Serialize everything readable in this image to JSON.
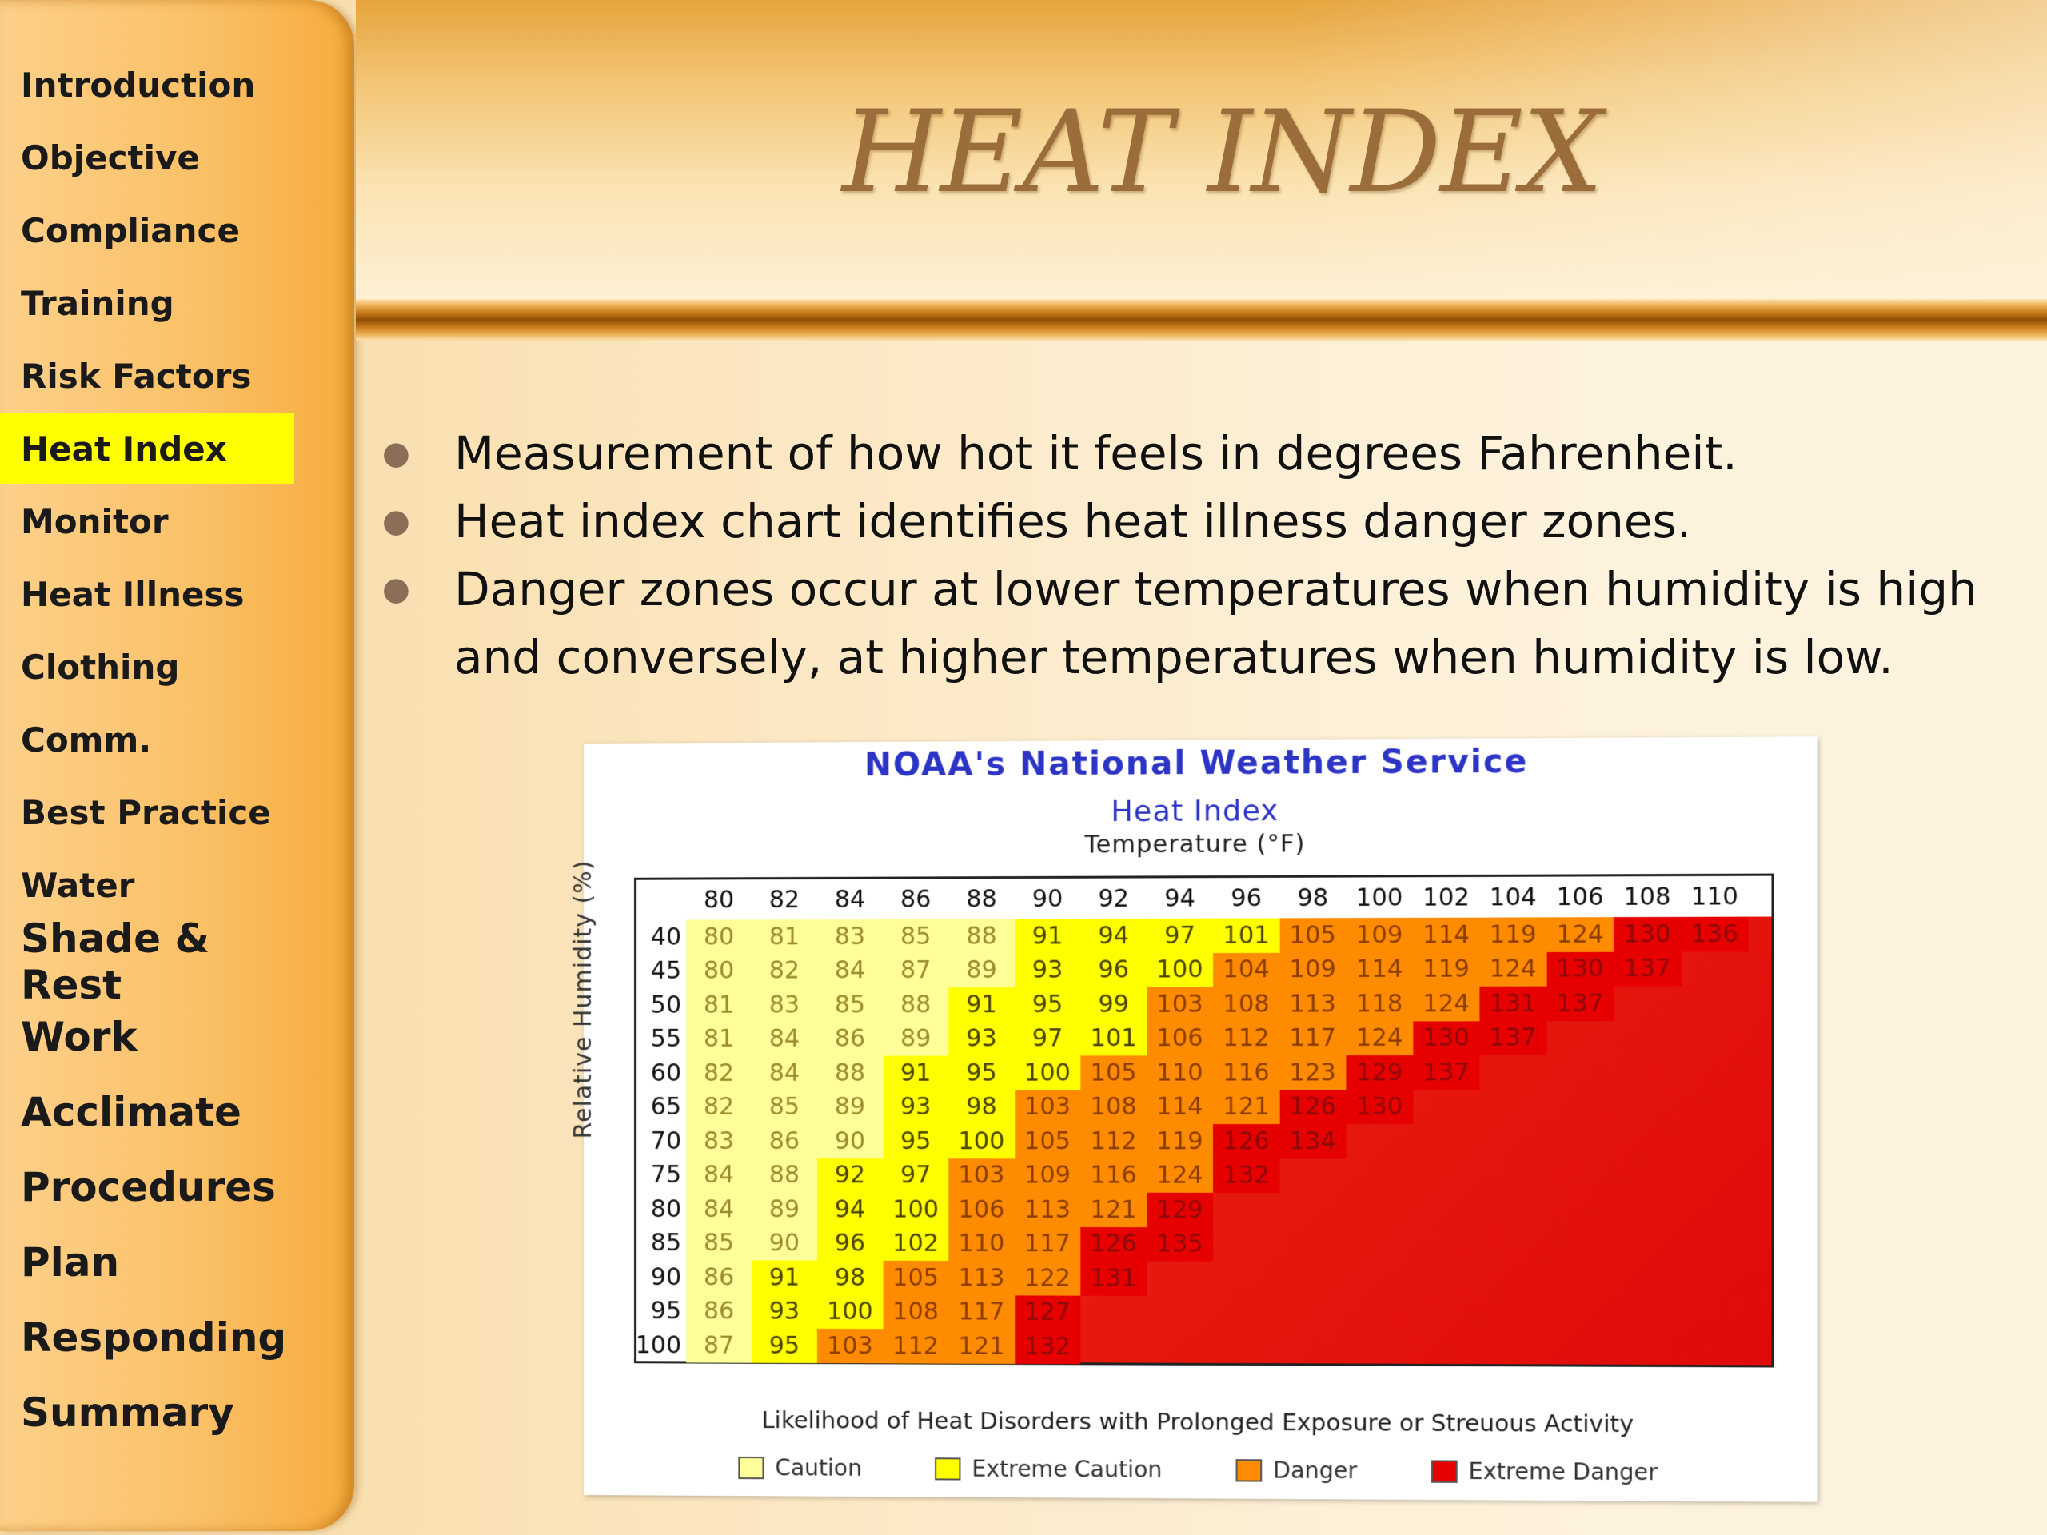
{
  "sidebar": {
    "items": [
      {
        "label": "Introduction"
      },
      {
        "label": "Objective"
      },
      {
        "label": "Compliance"
      },
      {
        "label": "Training"
      },
      {
        "label": "Risk Factors"
      },
      {
        "label": "Heat Index",
        "active": true
      },
      {
        "label": "Monitor"
      },
      {
        "label": "Heat Illness"
      },
      {
        "label": "Clothing"
      },
      {
        "label": "Comm."
      },
      {
        "label": "Best Practice"
      },
      {
        "label": "Water"
      },
      {
        "label": "Shade & Rest"
      },
      {
        "label": "Work"
      },
      {
        "label": "Acclimate"
      },
      {
        "label": "Procedures"
      },
      {
        "label": "Plan"
      },
      {
        "label": "Responding"
      },
      {
        "label": "Summary"
      }
    ],
    "active_color": "#ffff00"
  },
  "slide": {
    "title": "HEAT INDEX",
    "bullets": [
      "Measurement of how hot it feels in degrees Fahrenheit.",
      "Heat index chart identifies heat illness danger zones.",
      "Danger zones occur at lower temperatures when humidity is high and conversely, at higher temperatures when humidity is low."
    ]
  },
  "figure": {
    "title": "NOAA's National Weather Service",
    "subtitle": "Heat Index",
    "x_axis_label": "Temperature (°F)",
    "y_axis_label": "Relative Humidity (%)",
    "footer": "Likelihood of Heat Disorders with Prolonged Exposure or Streuous Activity",
    "legend": [
      {
        "label": "Caution",
        "color": "#ffff99"
      },
      {
        "label": "Extreme Caution",
        "color": "#ffff00"
      },
      {
        "label": "Danger",
        "color": "#ff8c00"
      },
      {
        "label": "Extreme Danger",
        "color": "#e60000"
      }
    ]
  },
  "chart_data": {
    "type": "heatmap",
    "title": "NOAA's National Weather Service",
    "subtitle": "Heat Index",
    "xlabel": "Temperature (°F)",
    "ylabel": "Relative Humidity (%)",
    "x": [
      80,
      82,
      84,
      86,
      88,
      90,
      92,
      94,
      96,
      98,
      100,
      102,
      104,
      106,
      108,
      110
    ],
    "y": [
      40,
      45,
      50,
      55,
      60,
      65,
      70,
      75,
      80,
      85,
      90,
      95,
      100
    ],
    "values": [
      [
        80,
        81,
        83,
        85,
        88,
        91,
        94,
        97,
        101,
        105,
        109,
        114,
        119,
        124,
        130,
        136
      ],
      [
        80,
        82,
        84,
        87,
        89,
        93,
        96,
        100,
        104,
        109,
        114,
        119,
        124,
        130,
        137,
        null
      ],
      [
        81,
        83,
        85,
        88,
        91,
        95,
        99,
        103,
        108,
        113,
        118,
        124,
        131,
        137,
        null,
        null
      ],
      [
        81,
        84,
        86,
        89,
        93,
        97,
        101,
        106,
        112,
        117,
        124,
        130,
        137,
        null,
        null,
        null
      ],
      [
        82,
        84,
        88,
        91,
        95,
        100,
        105,
        110,
        116,
        123,
        129,
        137,
        null,
        null,
        null,
        null
      ],
      [
        82,
        85,
        89,
        93,
        98,
        103,
        108,
        114,
        121,
        126,
        130,
        null,
        null,
        null,
        null,
        null
      ],
      [
        83,
        86,
        90,
        95,
        100,
        105,
        112,
        119,
        126,
        134,
        null,
        null,
        null,
        null,
        null,
        null
      ],
      [
        84,
        88,
        92,
        97,
        103,
        109,
        116,
        124,
        132,
        null,
        null,
        null,
        null,
        null,
        null,
        null
      ],
      [
        84,
        89,
        94,
        100,
        106,
        113,
        121,
        129,
        null,
        null,
        null,
        null,
        null,
        null,
        null,
        null
      ],
      [
        85,
        90,
        96,
        102,
        110,
        117,
        126,
        135,
        null,
        null,
        null,
        null,
        null,
        null,
        null,
        null
      ],
      [
        86,
        91,
        98,
        105,
        113,
        122,
        131,
        null,
        null,
        null,
        null,
        null,
        null,
        null,
        null,
        null
      ],
      [
        86,
        93,
        100,
        108,
        117,
        127,
        null,
        null,
        null,
        null,
        null,
        null,
        null,
        null,
        null,
        null
      ],
      [
        87,
        95,
        103,
        112,
        121,
        132,
        null,
        null,
        null,
        null,
        null,
        null,
        null,
        null,
        null,
        null
      ]
    ],
    "zones": [
      {
        "name": "Caution",
        "color": "#ffff99"
      },
      {
        "name": "Extreme Caution",
        "color": "#ffff00"
      },
      {
        "name": "Danger",
        "color": "#ff8c00"
      },
      {
        "name": "Extreme Danger",
        "color": "#e60000"
      }
    ]
  }
}
